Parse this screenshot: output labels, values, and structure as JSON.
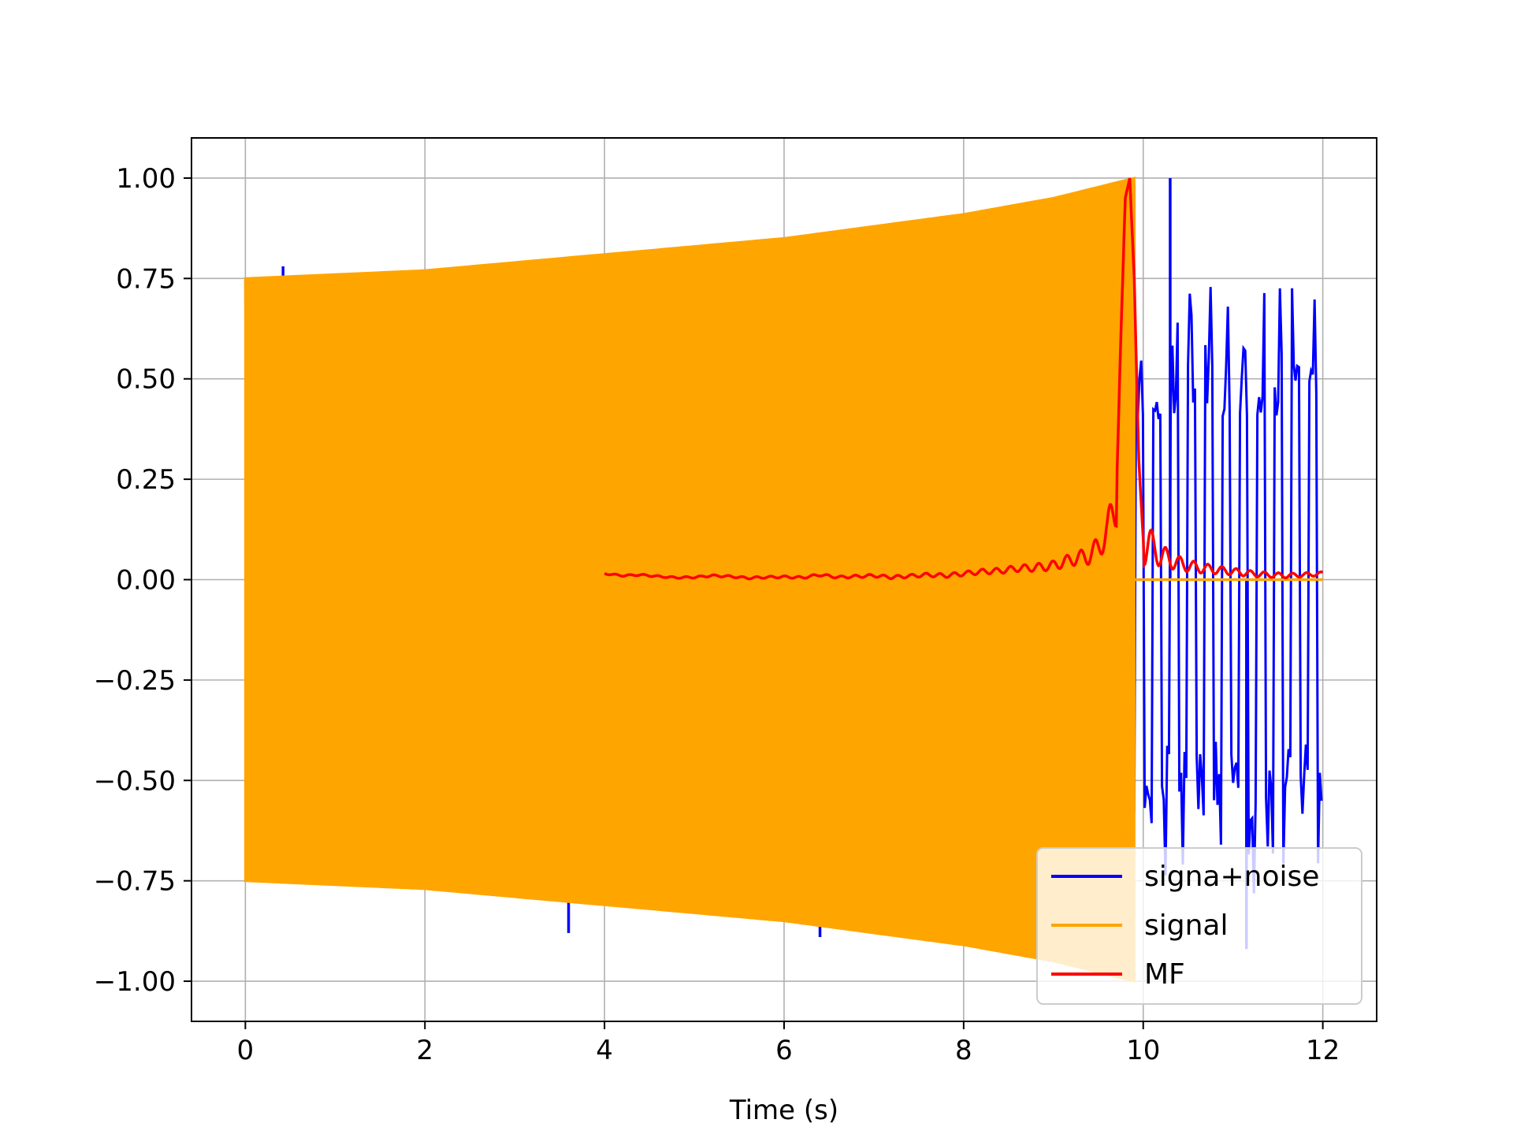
{
  "chart_data": {
    "type": "line",
    "title": "",
    "xlabel": "Time (s)",
    "ylabel": "",
    "xlim": [
      -0.6,
      12.6
    ],
    "ylim": [
      -1.1,
      1.1
    ],
    "xticks": [
      0,
      2,
      4,
      6,
      8,
      10,
      12
    ],
    "xtick_labels": [
      "0",
      "2",
      "4",
      "6",
      "8",
      "10",
      "12"
    ],
    "yticks": [
      1.0,
      0.75,
      0.5,
      0.25,
      0.0,
      -0.25,
      -0.5,
      -0.75,
      -1.0
    ],
    "ytick_labels": [
      "1.00",
      "0.75",
      "0.50",
      "0.25",
      "0.00",
      "−0.25",
      "−0.50",
      "−0.75",
      "−1.00"
    ],
    "grid": true,
    "legend_position": "lower-right",
    "series": [
      {
        "name": "signa+noise",
        "color": "#0000ff",
        "description_range": [
          0,
          12
        ],
        "note": "noisy signal; mostly hidden behind signal before ~9.9 s, noise only after",
        "envelope_upper": [
          [
            0,
            0.75
          ],
          [
            2,
            0.77
          ],
          [
            4,
            0.8
          ],
          [
            6,
            0.85
          ],
          [
            8,
            0.92
          ],
          [
            9.9,
            1.0
          ]
        ],
        "visible_spikes": [
          [
            0.42,
            0.78
          ],
          [
            3.4,
            0.8
          ],
          [
            3.6,
            -0.88
          ],
          [
            6.4,
            -0.89
          ],
          [
            2.0,
            -0.77
          ],
          [
            2.9,
            -0.79
          ],
          [
            10.3,
            1.0
          ],
          [
            11.15,
            -0.92
          ]
        ]
      },
      {
        "name": "signal",
        "color": "#ffa500",
        "range": [
          0,
          9.9
        ],
        "envelope_upper": [
          [
            0,
            0.75
          ],
          [
            1,
            0.76
          ],
          [
            2,
            0.77
          ],
          [
            3,
            0.79
          ],
          [
            4,
            0.81
          ],
          [
            5,
            0.83
          ],
          [
            6,
            0.85
          ],
          [
            7,
            0.88
          ],
          [
            8,
            0.91
          ],
          [
            9,
            0.95
          ],
          [
            9.9,
            1.0
          ]
        ],
        "after": [
          [
            9.9,
            0.0
          ],
          [
            12,
            0.0
          ]
        ]
      },
      {
        "name": "MF",
        "color": "#ff0000",
        "x": [
          4.0,
          4.2,
          4.4,
          4.6,
          4.8,
          5.0,
          5.2,
          5.4,
          5.6,
          5.8,
          6.0,
          6.2,
          6.4,
          6.6,
          6.8,
          7.0,
          7.2,
          7.4,
          7.6,
          7.8,
          8.0,
          8.2,
          8.4,
          8.6,
          8.8,
          9.0,
          9.2,
          9.4,
          9.5,
          9.6,
          9.7,
          9.75,
          9.8,
          9.85,
          9.9,
          9.95,
          10.0,
          10.1,
          10.2,
          10.4,
          10.6,
          10.8,
          11.0,
          11.2,
          11.4,
          11.6,
          11.8,
          12.0
        ],
        "y": [
          0.015,
          0.01,
          0.012,
          0.008,
          0.005,
          0.006,
          0.01,
          0.008,
          0.004,
          0.006,
          0.007,
          0.005,
          0.012,
          0.006,
          0.008,
          0.01,
          0.006,
          0.009,
          0.012,
          0.01,
          0.015,
          0.02,
          0.022,
          0.028,
          0.03,
          0.035,
          0.05,
          0.06,
          0.08,
          0.12,
          0.2,
          0.6,
          0.95,
          1.0,
          0.75,
          0.3,
          0.1,
          0.08,
          0.06,
          0.04,
          0.03,
          0.025,
          0.02,
          0.015,
          0.012,
          0.01,
          0.012,
          0.015
        ]
      }
    ]
  }
}
